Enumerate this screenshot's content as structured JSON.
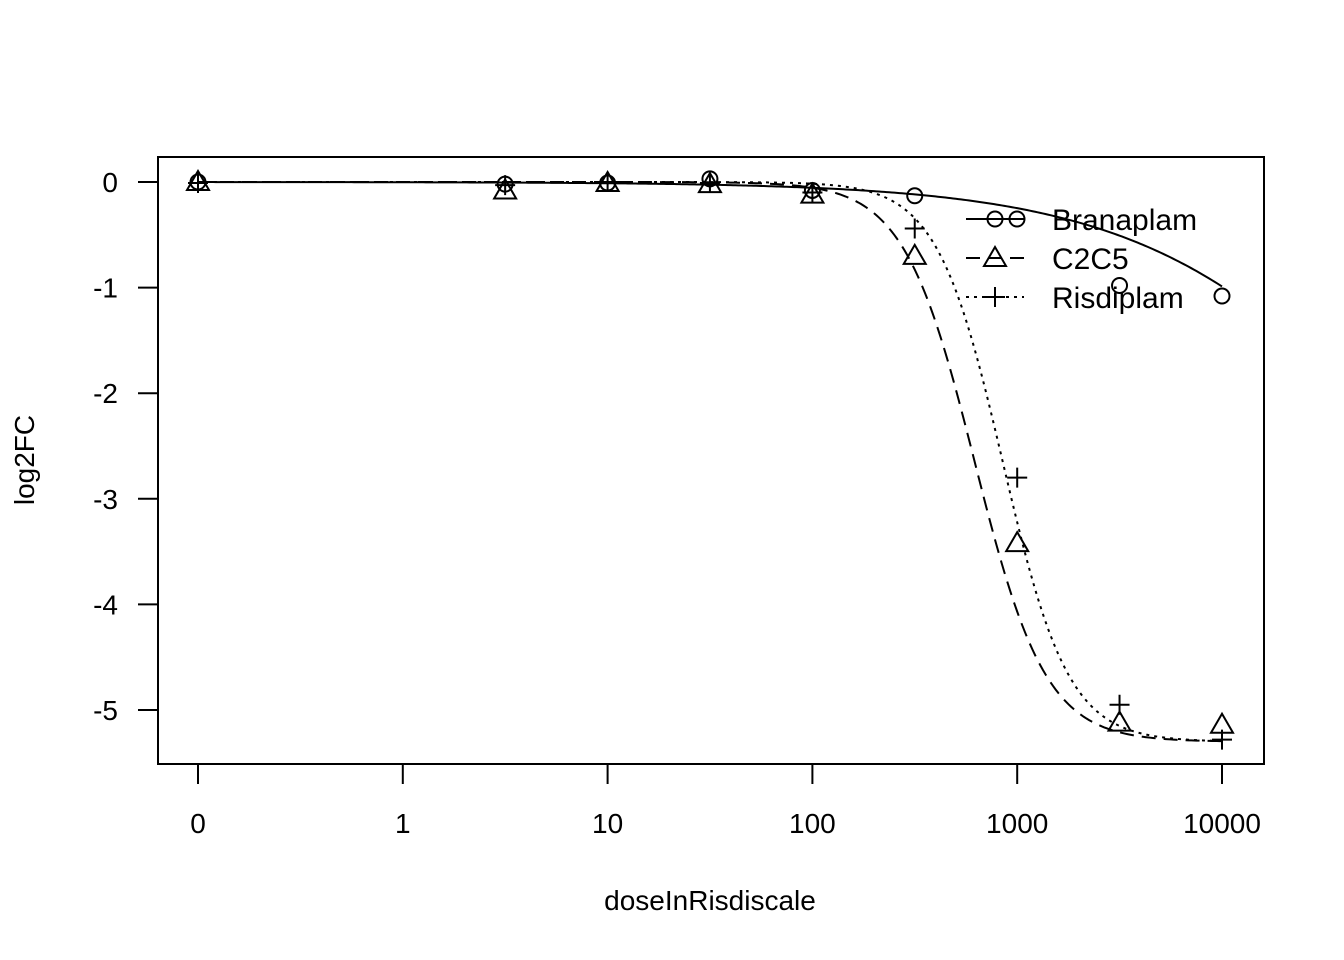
{
  "chart_data": {
    "type": "line",
    "title": "",
    "xlabel": "doseInRisdiscale",
    "ylabel": "log2FC",
    "x_scale": "log10 (0 shown at log position -1)",
    "x_tick_labels": [
      "0",
      "1",
      "10",
      "100",
      "1000",
      "10000"
    ],
    "x_tick_values": [
      0,
      1,
      10,
      100,
      1000,
      10000
    ],
    "y_tick_values": [
      0,
      -1,
      -2,
      -3,
      -4,
      -5
    ],
    "y_tick_labels": [
      "0",
      "-1",
      "-2",
      "-3",
      "-4",
      "-5"
    ],
    "ylim": [
      -5.5,
      0.23
    ],
    "grid": false,
    "legend_position": "top-right",
    "series": [
      {
        "name": "Branaplam",
        "marker": "circle",
        "line_style": "solid",
        "points": [
          {
            "x": 0,
            "y": 0.0
          },
          {
            "x": 3.16,
            "y": -0.02
          },
          {
            "x": 10,
            "y": -0.01
          },
          {
            "x": 31.6,
            "y": 0.03
          },
          {
            "x": 100,
            "y": -0.08
          },
          {
            "x": 316,
            "y": -0.13
          },
          {
            "x": 3160,
            "y": -0.98
          },
          {
            "x": 10000,
            "y": -1.08
          }
        ],
        "fit": {
          "top": 0.0,
          "bottom": -5.3,
          "ec50": 90000,
          "hill": 0.67
        }
      },
      {
        "name": "C2C5",
        "marker": "triangle",
        "line_style": "dashed",
        "points": [
          {
            "x": 0,
            "y": 0.0
          },
          {
            "x": 3.16,
            "y": -0.08
          },
          {
            "x": 10,
            "y": -0.01
          },
          {
            "x": 31.6,
            "y": -0.02
          },
          {
            "x": 100,
            "y": -0.12
          },
          {
            "x": 316,
            "y": -0.7
          },
          {
            "x": 1000,
            "y": -3.42
          },
          {
            "x": 3160,
            "y": -5.12
          },
          {
            "x": 10000,
            "y": -5.14
          }
        ],
        "fit": {
          "top": 0.0,
          "bottom": -5.3,
          "ec50": 620,
          "hill": 2.5
        }
      },
      {
        "name": "Risdiplam",
        "marker": "plus",
        "line_style": "dotted",
        "points": [
          {
            "x": 0,
            "y": -0.01
          },
          {
            "x": 3.16,
            "y": -0.03
          },
          {
            "x": 10,
            "y": 0.0
          },
          {
            "x": 31.6,
            "y": -0.01
          },
          {
            "x": 100,
            "y": -0.1
          },
          {
            "x": 316,
            "y": -0.44
          },
          {
            "x": 1000,
            "y": -2.8
          },
          {
            "x": 3160,
            "y": -4.95
          },
          {
            "x": 10000,
            "y": -5.28
          }
        ],
        "fit": {
          "top": 0.0,
          "bottom": -5.3,
          "ec50": 850,
          "hill": 2.7
        }
      }
    ]
  }
}
